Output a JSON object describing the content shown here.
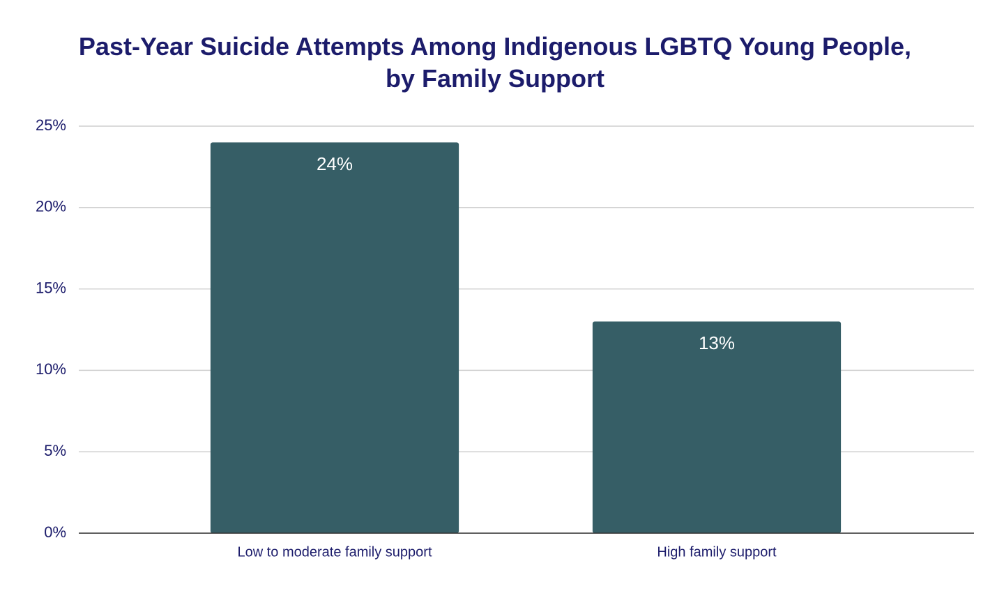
{
  "chart_data": {
    "type": "bar",
    "title": "Past-Year Suicide Attempts Among Indigenous LGBTQ Young People, by Family Support",
    "categories": [
      "Low to moderate family support",
      "High family support"
    ],
    "values": [
      24,
      13
    ],
    "value_labels": [
      "24%",
      "13%"
    ],
    "color": "#365e66",
    "ylim": [
      0,
      25
    ],
    "yticks": [
      {
        "value": 0,
        "label": "0%"
      },
      {
        "value": 5,
        "label": "5%"
      },
      {
        "value": 10,
        "label": "10%"
      },
      {
        "value": 15,
        "label": "15%"
      },
      {
        "value": 20,
        "label": "20%"
      },
      {
        "value": 25,
        "label": "25%"
      }
    ],
    "grid": true
  }
}
